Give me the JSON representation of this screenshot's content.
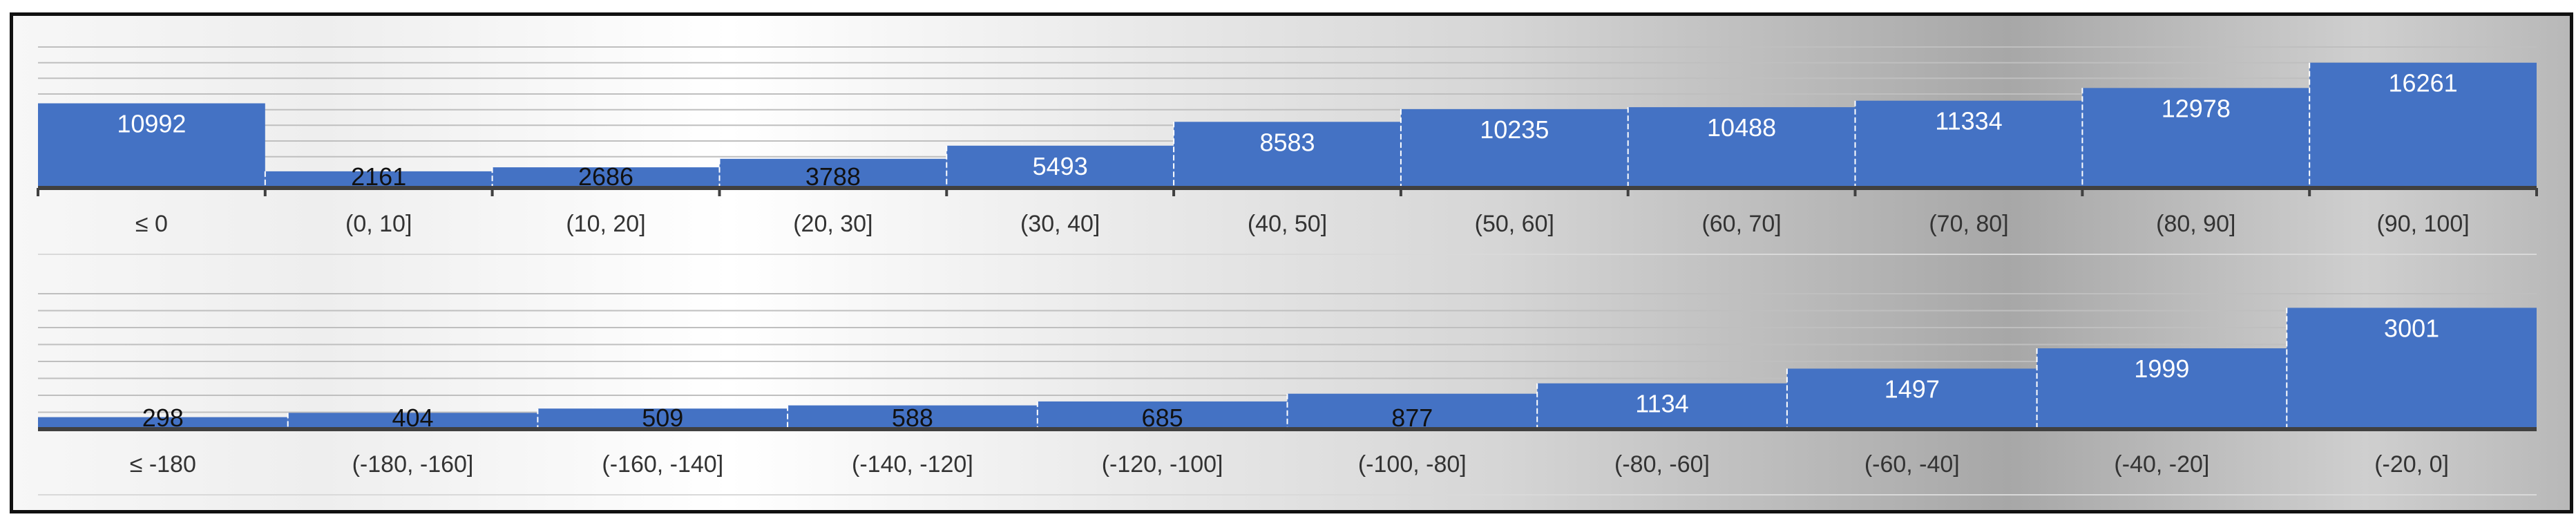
{
  "chart_data": [
    {
      "type": "bar",
      "categories": [
        "≤ 0",
        "(0, 10]",
        "(10, 20]",
        "(20, 30]",
        "(30, 40]",
        "(40, 50]",
        "(50, 60]",
        "(60, 70]",
        "(70, 80]",
        "(80, 90]",
        "(90, 100]"
      ],
      "values": [
        10992,
        2161,
        2686,
        3788,
        5493,
        8583,
        10235,
        10488,
        11334,
        12978,
        16261
      ],
      "ylim": [
        0,
        18300
      ],
      "grid": true,
      "legend": "none",
      "bar_color": "#4472C4"
    },
    {
      "type": "bar",
      "categories": [
        "≤ -180",
        "(-180, -160]",
        "(-160, -140]",
        "(-140, -120]",
        "(-120, -100]",
        "(-100, -80]",
        "(-80, -60]",
        "(-60, -40]",
        "(-40, -20]",
        "(-20, 0]"
      ],
      "values": [
        298,
        404,
        509,
        588,
        685,
        877,
        1134,
        1497,
        1999,
        3001
      ],
      "ylim": [
        0,
        3350
      ],
      "grid": true,
      "legend": "none",
      "bar_color": "#4472C4"
    }
  ],
  "colors": {
    "bar": "#4472C4",
    "label_inside": "#ffffff",
    "label_outside": "#111111",
    "category_text": "#333333",
    "axis": "#404040",
    "grid": "#bfbfbf"
  }
}
